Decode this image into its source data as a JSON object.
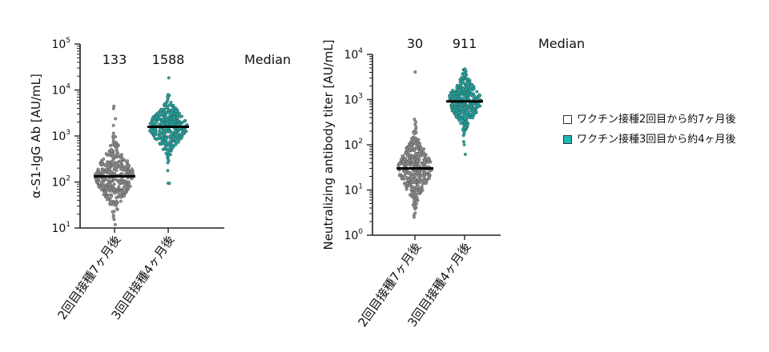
{
  "colors": {
    "group1_fill": "#8e8e8e",
    "group1_legend": "#ffffff",
    "group2_fill": "#1aa8a2",
    "group2_legend": "#1fb8b2",
    "axis": "#222222",
    "median_line": "#000000"
  },
  "legend": {
    "items": [
      {
        "label": "ワクチン接種2回目から約7ヶ月後",
        "color": "#ffffff"
      },
      {
        "label": "ワクチン接種3回目から約4ヶ月後",
        "color": "#1fb8b2"
      }
    ]
  },
  "chart_data": [
    {
      "type": "scatter",
      "subtype": "beeswarm",
      "ylabel": "α-S1-IgG Ab [AU/mL]",
      "yscale": "log",
      "ylim": [
        10,
        100000
      ],
      "yticks": [
        {
          "base": "10",
          "exp": "1"
        },
        {
          "base": "10",
          "exp": "2"
        },
        {
          "base": "10",
          "exp": "3"
        },
        {
          "base": "10",
          "exp": "4"
        },
        {
          "base": "10",
          "exp": "5"
        }
      ],
      "categories": [
        "2回目接種7ヶ月後",
        "3回目接種4ヶ月後"
      ],
      "medians": [
        133,
        1588
      ],
      "median_labels": [
        "133",
        "1588"
      ],
      "median_title": "Median",
      "ranges": [
        [
          12,
          4500
        ],
        [
          95,
          18000
        ]
      ]
    },
    {
      "type": "scatter",
      "subtype": "beeswarm",
      "ylabel": "Neutralizing antibody titer [AU/mL]",
      "yscale": "log",
      "ylim": [
        1,
        10000
      ],
      "yticks": [
        {
          "base": "10",
          "exp": "0"
        },
        {
          "base": "10",
          "exp": "1"
        },
        {
          "base": "10",
          "exp": "2"
        },
        {
          "base": "10",
          "exp": "3"
        },
        {
          "base": "10",
          "exp": "4"
        }
      ],
      "categories": [
        "2回目接種7ヶ月後",
        "3回目接種4ヶ月後"
      ],
      "medians": [
        30,
        911
      ],
      "median_labels": [
        "30",
        "911"
      ],
      "median_title": "Median",
      "ranges": [
        [
          2.5,
          4200
        ],
        [
          60,
          4700
        ]
      ]
    }
  ]
}
